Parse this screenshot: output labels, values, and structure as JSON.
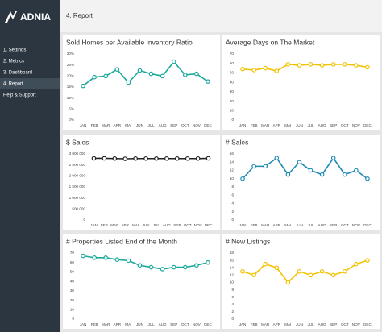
{
  "sidebar": {
    "logo": "ADNIA",
    "menu": [
      "1. Settings",
      "2. Metrics",
      "3. Dashboard",
      "4. Report",
      "Help & Support"
    ],
    "active_menu": 3
  },
  "header": {
    "title": "4. Report"
  },
  "chart_data": [
    {
      "type": "line",
      "title": "Sold Homes per Available Inventory Ratio",
      "color": "#1aa89c",
      "categories": [
        "JAN",
        "FEB",
        "MAR",
        "APR",
        "MAI",
        "JUN",
        "JUL",
        "AUG",
        "SEP",
        "OCT",
        "NOV",
        "DEC"
      ],
      "values": [
        15.5,
        19.5,
        20,
        23,
        17,
        22.5,
        21,
        20,
        26.5,
        20.5,
        21,
        17.5
      ],
      "ylim": [
        0,
        30
      ],
      "yticks": [
        {
          "value": 0,
          "label": "0%"
        },
        {
          "value": 5,
          "label": "5%"
        },
        {
          "value": 10,
          "label": "10%"
        },
        {
          "value": 15,
          "label": "15%"
        },
        {
          "value": 20,
          "label": "20%"
        },
        {
          "value": 25,
          "label": "25%"
        },
        {
          "value": 30,
          "label": "30%"
        }
      ]
    },
    {
      "type": "line",
      "title": "Average Days on The Market",
      "color": "#f2c200",
      "categories": [
        "JAN",
        "FEB",
        "MAR",
        "APR",
        "MAI",
        "JUN",
        "JUL",
        "AUG",
        "SEP",
        "OCT",
        "NOV",
        "DEC"
      ],
      "values": [
        54,
        53,
        55,
        52,
        59,
        58,
        59,
        58,
        59,
        59,
        58,
        56
      ],
      "ylim": [
        0,
        70
      ],
      "yticks": [
        0,
        10,
        20,
        30,
        40,
        50,
        60,
        70
      ]
    },
    {
      "type": "line",
      "title": "$ Sales",
      "color": "#222222",
      "categories": [
        "JAN",
        "FEB",
        "MAR",
        "APR",
        "MAI",
        "JUN",
        "JUL",
        "AUG",
        "SEP",
        "OCT",
        "NOV",
        "DEC"
      ],
      "values": [
        2800000,
        2800000,
        2790000,
        2780000,
        2790000,
        2790000,
        2790000,
        2790000,
        2790000,
        2790000,
        2790000,
        2800000
      ],
      "ylim": [
        0,
        3000000
      ],
      "yticks": [
        {
          "value": 0,
          "label": "0"
        },
        {
          "value": 500000,
          "label": "500 000"
        },
        {
          "value": 1000000,
          "label": "1 000 000"
        },
        {
          "value": 1500000,
          "label": "1 500 000"
        },
        {
          "value": 2000000,
          "label": "2 000 000"
        },
        {
          "value": 2500000,
          "label": "2 500 000"
        },
        {
          "value": 3000000,
          "label": "3 000 000"
        }
      ]
    },
    {
      "type": "line",
      "title": "# Sales",
      "color": "#1f8bb5",
      "categories": [
        "JAN",
        "FEB",
        "MAR",
        "APR",
        "MAI",
        "JUN",
        "JUL",
        "AUG",
        "SEP",
        "OCT",
        "NOV",
        "DEC"
      ],
      "values": [
        10,
        13,
        13,
        15,
        11,
        14,
        12,
        11,
        15,
        11,
        12,
        10
      ],
      "ylim": [
        0,
        16
      ],
      "yticks": [
        0,
        2,
        4,
        6,
        8,
        10,
        12,
        14,
        16
      ]
    },
    {
      "type": "line",
      "title": "# Properties Listed End of the Month",
      "color": "#1aa89c",
      "categories": [
        "JAN",
        "FEB",
        "MAR",
        "APR",
        "MAI",
        "JUN",
        "JUL",
        "AUG",
        "SEP",
        "OCT",
        "NOV",
        "DEC"
      ],
      "values": [
        67,
        65,
        65,
        63,
        62,
        57,
        55,
        53,
        55,
        55,
        57,
        60
      ],
      "ylim": [
        0,
        70
      ],
      "yticks": [
        0,
        10,
        20,
        30,
        40,
        50,
        60,
        70
      ]
    },
    {
      "type": "line",
      "title": "# New Listings",
      "color": "#f2c200",
      "categories": [
        "JAN",
        "FEB",
        "MAR",
        "APR",
        "MAI",
        "JUN",
        "JUL",
        "AUG",
        "SEP",
        "OCT",
        "NOV",
        "DEC"
      ],
      "values": [
        13,
        12,
        15,
        14,
        10,
        13,
        12,
        13,
        12,
        13,
        15,
        16
      ],
      "ylim": [
        0,
        18
      ],
      "yticks": [
        0,
        2,
        4,
        6,
        8,
        10,
        12,
        14,
        16,
        18
      ]
    }
  ]
}
